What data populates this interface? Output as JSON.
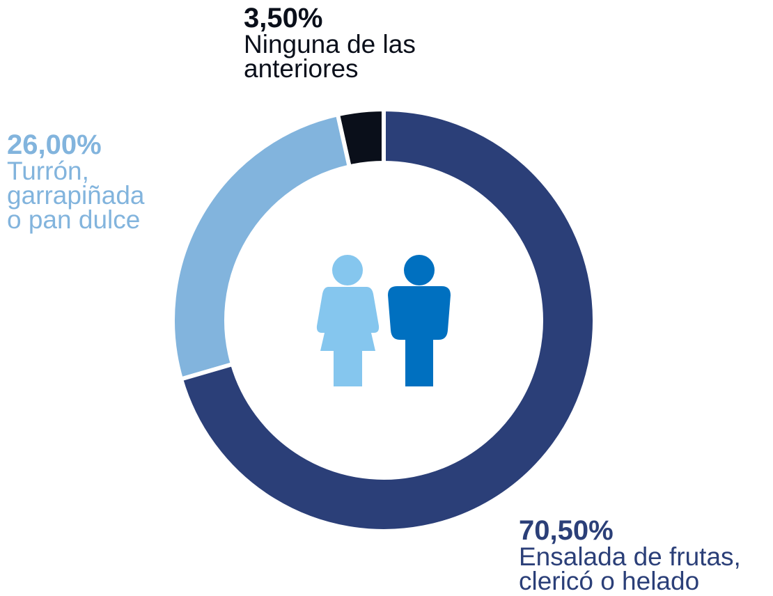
{
  "chart_data": {
    "type": "donut",
    "categories": [
      "Ensalada de frutas,\nclericó o helado",
      "Turrón,\ngarrapiñada\no pan dulce",
      "Ninguna de las\nanteriores"
    ],
    "values": [
      70.5,
      26,
      3.5
    ],
    "value_labels": [
      "70,50%",
      "26,00%",
      "3,50%"
    ],
    "colors": [
      "#2b3f78",
      "#82b4dd",
      "#0a0f1a"
    ]
  }
}
